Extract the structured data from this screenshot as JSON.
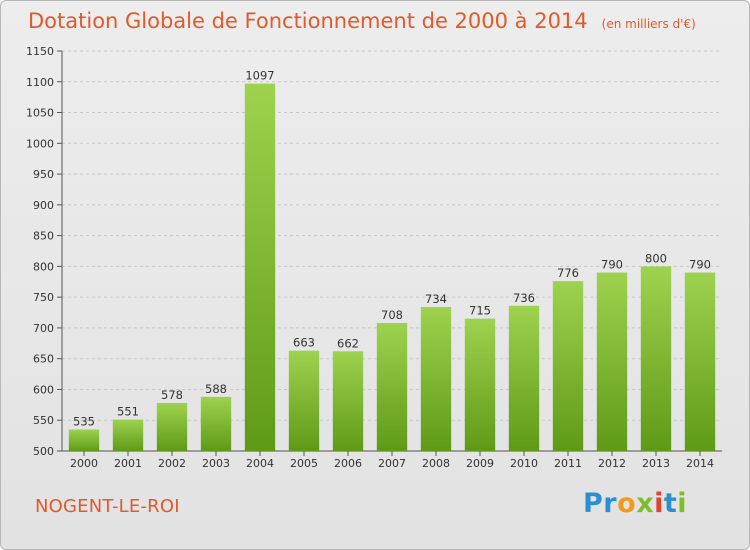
{
  "title": "Dotation Globale de Fonctionnement de 2000 à 2014",
  "subtitle": "(en milliers d'€)",
  "place_name": "NOGENT-LE-ROI",
  "brand": {
    "name": "Proxiti",
    "letters": [
      {
        "ch": "P",
        "color": "#2a8fd0"
      },
      {
        "ch": "r",
        "color": "#2a8fd0"
      },
      {
        "ch": "o",
        "color": "#f19a1c"
      },
      {
        "ch": "x",
        "color": "#7bbf29"
      },
      {
        "ch": "i",
        "color": "#e0442f"
      },
      {
        "ch": "t",
        "color": "#2a8fd0"
      },
      {
        "ch": "i",
        "color": "#7bbf29"
      }
    ]
  },
  "colors": {
    "title": "#e05a2a",
    "bar_light": "#9ed24f",
    "bar_dark": "#5f9a16",
    "background": "#e6e6e6",
    "grid": "#c9c9c9"
  },
  "chart_data": {
    "type": "bar",
    "categories": [
      "2000",
      "2001",
      "2002",
      "2003",
      "2004",
      "2005",
      "2006",
      "2007",
      "2008",
      "2009",
      "2010",
      "2011",
      "2012",
      "2013",
      "2014"
    ],
    "values": [
      535,
      551,
      578,
      588,
      1097,
      663,
      662,
      708,
      734,
      715,
      736,
      776,
      790,
      800,
      790
    ],
    "ylim": [
      500,
      1150
    ],
    "yticks": [
      500,
      550,
      600,
      650,
      700,
      750,
      800,
      850,
      900,
      950,
      1000,
      1050,
      1100,
      1150
    ],
    "grid": "horizontal dashed",
    "legend": "none"
  }
}
